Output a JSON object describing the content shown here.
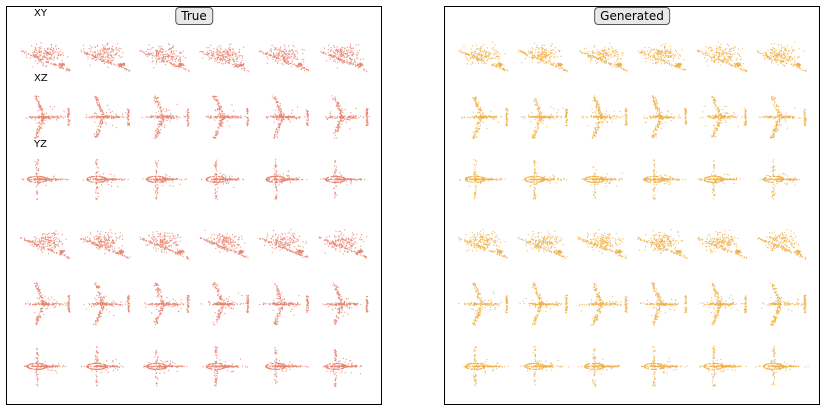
{
  "panels": [
    {
      "id": "true",
      "title": "True",
      "color": "#e8826e"
    },
    {
      "id": "gen",
      "title": "Generated",
      "color": "#f0b048"
    }
  ],
  "plane_labels": [
    "XY",
    "XZ",
    "YZ"
  ],
  "grid": {
    "rows": 6,
    "cols": 6
  }
}
